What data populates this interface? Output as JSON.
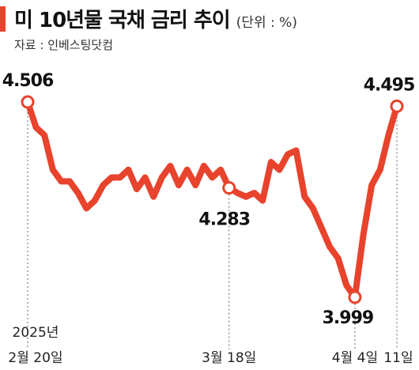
{
  "header": {
    "title": "미 10년물 국채 금리 추이",
    "unit": "(단위 : %)",
    "source": "자료 : 인베스팅닷컴"
  },
  "chart_data": {
    "type": "line",
    "title": "미 10년물 국채 금리 추이",
    "unit": "%",
    "series": [
      {
        "values": [
          4.506,
          4.44,
          4.42,
          4.33,
          4.3,
          4.3,
          4.27,
          4.23,
          4.25,
          4.29,
          4.31,
          4.31,
          4.33,
          4.28,
          4.31,
          4.26,
          4.31,
          4.34,
          4.29,
          4.33,
          4.29,
          4.34,
          4.31,
          4.33,
          4.283,
          4.27,
          4.26,
          4.27,
          4.25,
          4.35,
          4.33,
          4.37,
          4.38,
          4.26,
          4.23,
          4.18,
          4.13,
          4.1,
          4.03,
          3.999,
          4.16,
          4.29,
          4.33,
          4.42,
          4.495
        ],
        "color": "#e8432c"
      }
    ],
    "labeled_points": [
      {
        "index": 0,
        "label": "4.506"
      },
      {
        "index": 24,
        "label": "4.283"
      },
      {
        "index": 39,
        "label": "3.999"
      },
      {
        "index": 44,
        "label": "4.495"
      }
    ],
    "x_ticks": [
      {
        "index": 0,
        "label": "2월 20일",
        "year": "2025년"
      },
      {
        "index": 24,
        "label": "3월 18일"
      },
      {
        "index": 39,
        "label": "4월 4일"
      },
      {
        "index": 44,
        "label": "11일"
      }
    ],
    "ylim": [
      3.92,
      4.56
    ],
    "grid": false
  }
}
